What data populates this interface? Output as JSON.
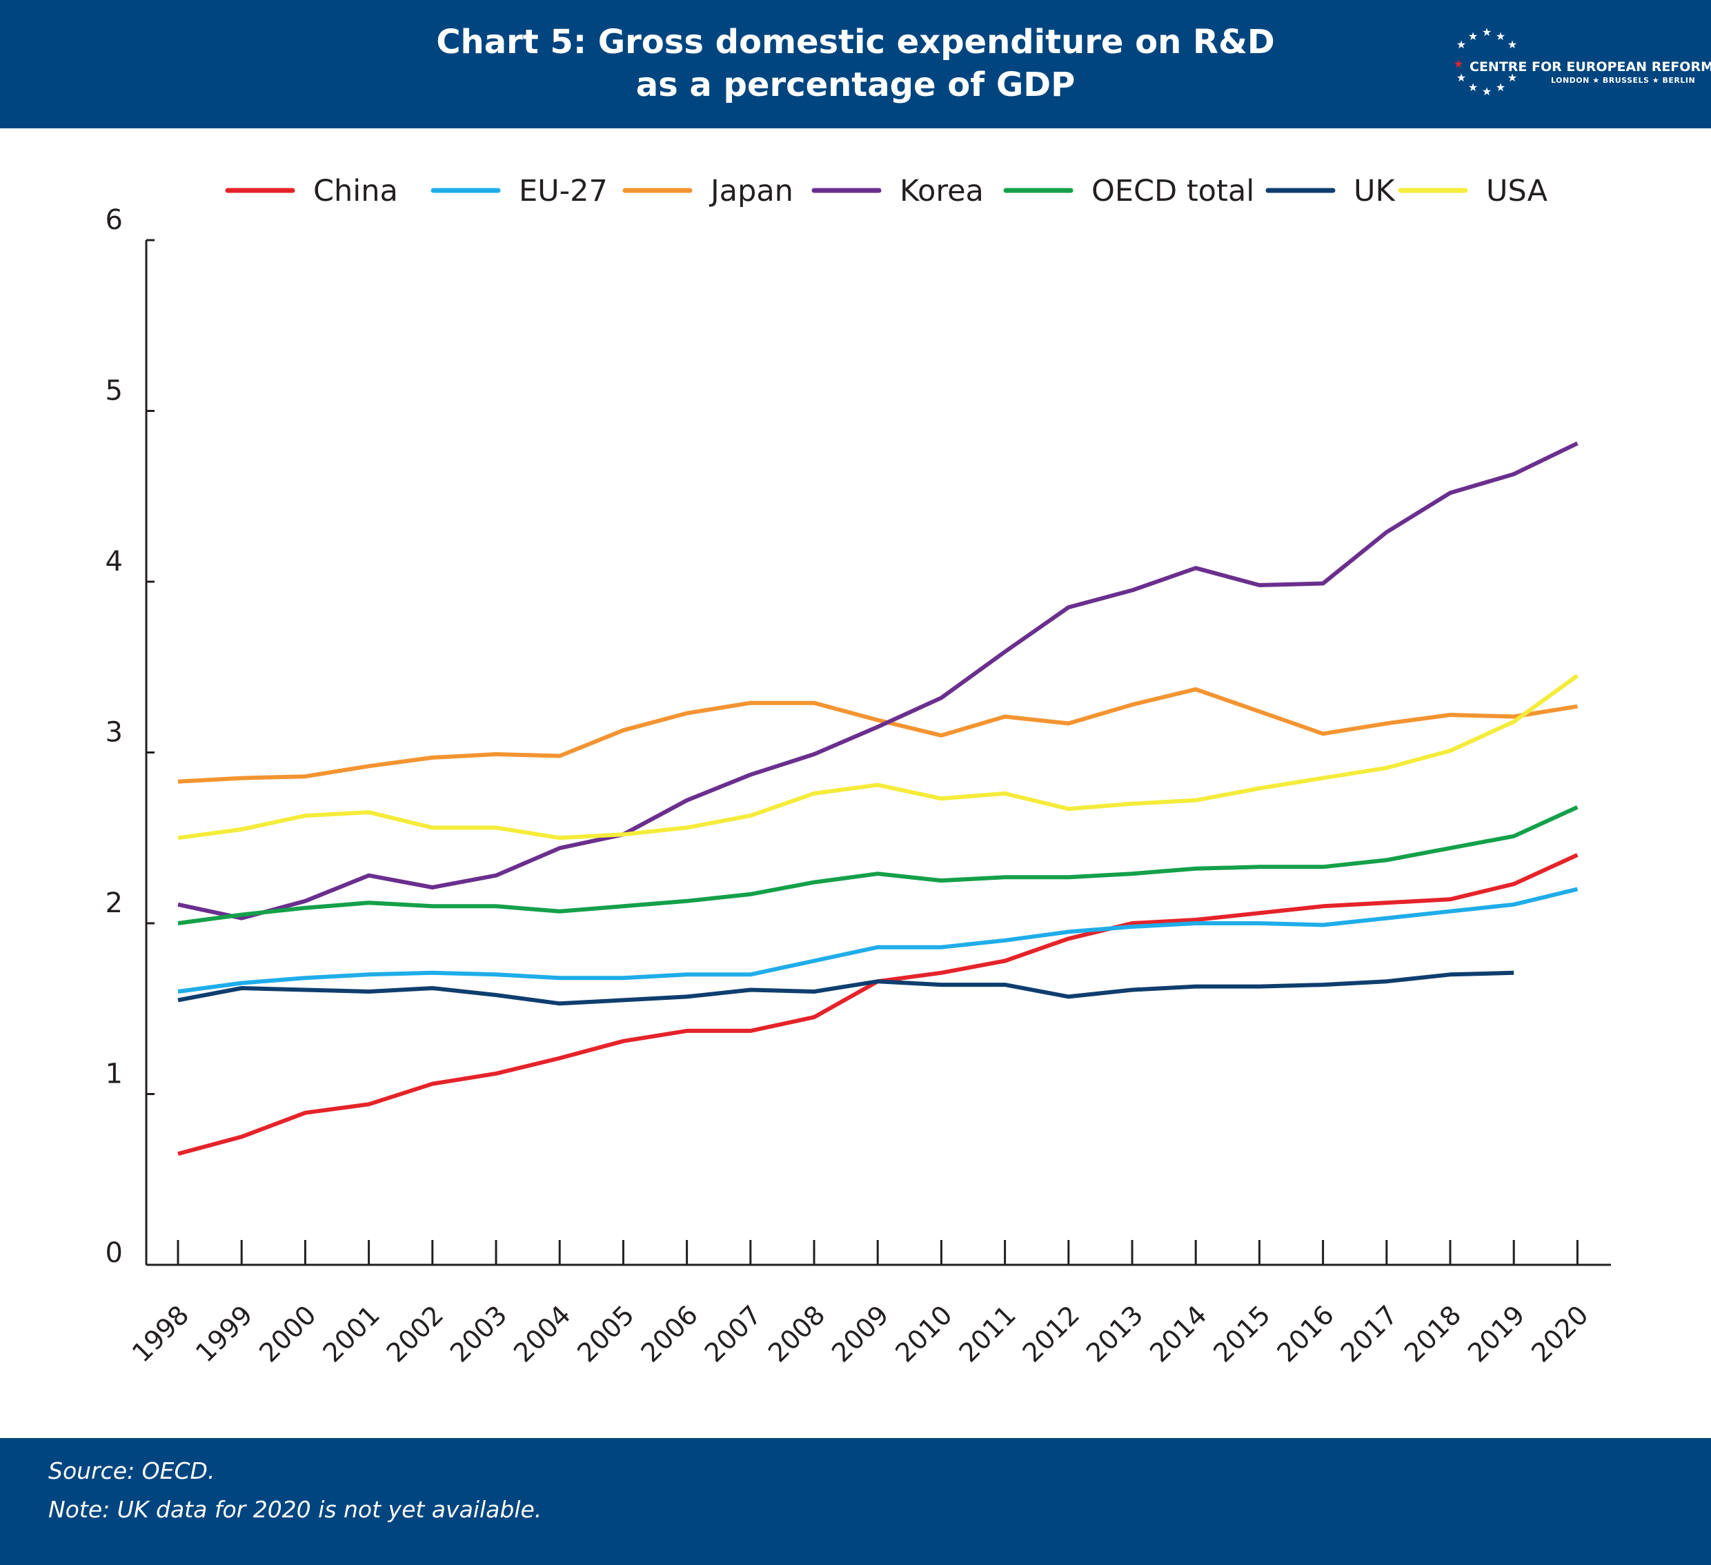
{
  "header": {
    "title_line1": "Chart 5: Gross domestic expenditure on R&D",
    "title_line2": "as a percentage of GDP",
    "logo_name": "CENTRE FOR EUROPEAN REFORM",
    "logo_cities": "LONDON ★ BRUSSELS ★ BERLIN"
  },
  "footer": {
    "source": "Source: OECD.",
    "note": "Note: UK data for 2020 is not yet available."
  },
  "colors": {
    "header_bg": "#00457f",
    "China": "#e5232a",
    "EU-27": "#1fade9",
    "Japan": "#f39431",
    "Korea": "#6a2f8e",
    "OECD total": "#14a04a",
    "UK": "#0f3e6e",
    "USA": "#f4ec3a"
  },
  "chart_data": {
    "type": "line",
    "title": "Chart 5: Gross domestic expenditure on R&D as a percentage of GDP",
    "xlabel": "",
    "ylabel": "",
    "ylim": [
      0,
      6
    ],
    "yticks": [
      0,
      1,
      2,
      3,
      4,
      5,
      6
    ],
    "grid": false,
    "legend": "top",
    "x": [
      "1998",
      "1999",
      "2000",
      "2001",
      "2002",
      "2003",
      "2004",
      "2005",
      "2006",
      "2007",
      "2008",
      "2009",
      "2010",
      "2011",
      "2012",
      "2013",
      "2014",
      "2015",
      "2016",
      "2017",
      "2018",
      "2019",
      "2020"
    ],
    "series": [
      {
        "name": "China",
        "values": [
          0.65,
          0.75,
          0.89,
          0.94,
          1.06,
          1.12,
          1.21,
          1.31,
          1.37,
          1.37,
          1.45,
          1.66,
          1.71,
          1.78,
          1.91,
          2.0,
          2.02,
          2.06,
          2.1,
          2.12,
          2.14,
          2.23,
          2.4
        ]
      },
      {
        "name": "EU-27",
        "values": [
          1.6,
          1.65,
          1.68,
          1.7,
          1.71,
          1.7,
          1.68,
          1.68,
          1.7,
          1.7,
          1.78,
          1.86,
          1.86,
          1.9,
          1.95,
          1.98,
          2.0,
          2.0,
          1.99,
          2.03,
          2.07,
          2.11,
          2.2
        ]
      },
      {
        "name": "Japan",
        "values": [
          2.83,
          2.85,
          2.86,
          2.92,
          2.97,
          2.99,
          2.98,
          3.13,
          3.23,
          3.29,
          3.29,
          3.19,
          3.1,
          3.21,
          3.17,
          3.28,
          3.37,
          3.24,
          3.11,
          3.17,
          3.22,
          3.21,
          3.27
        ]
      },
      {
        "name": "Korea",
        "values": [
          2.11,
          2.03,
          2.13,
          2.28,
          2.21,
          2.28,
          2.44,
          2.52,
          2.72,
          2.87,
          2.99,
          3.15,
          3.32,
          3.59,
          3.85,
          3.95,
          4.08,
          3.98,
          3.99,
          4.29,
          4.52,
          4.63,
          4.81
        ]
      },
      {
        "name": "OECD total",
        "values": [
          2.0,
          2.05,
          2.09,
          2.12,
          2.1,
          2.1,
          2.07,
          2.1,
          2.13,
          2.17,
          2.24,
          2.29,
          2.25,
          2.27,
          2.27,
          2.29,
          2.32,
          2.33,
          2.33,
          2.37,
          2.44,
          2.51,
          2.68
        ]
      },
      {
        "name": "UK",
        "values": [
          1.55,
          1.62,
          1.61,
          1.6,
          1.62,
          1.58,
          1.53,
          1.55,
          1.57,
          1.61,
          1.6,
          1.66,
          1.64,
          1.64,
          1.57,
          1.61,
          1.63,
          1.63,
          1.64,
          1.66,
          1.7,
          1.71,
          null
        ]
      },
      {
        "name": "USA",
        "values": [
          2.5,
          2.55,
          2.63,
          2.65,
          2.56,
          2.56,
          2.5,
          2.52,
          2.56,
          2.63,
          2.76,
          2.81,
          2.73,
          2.76,
          2.67,
          2.7,
          2.72,
          2.79,
          2.85,
          2.91,
          3.01,
          3.18,
          3.45
        ]
      }
    ]
  }
}
